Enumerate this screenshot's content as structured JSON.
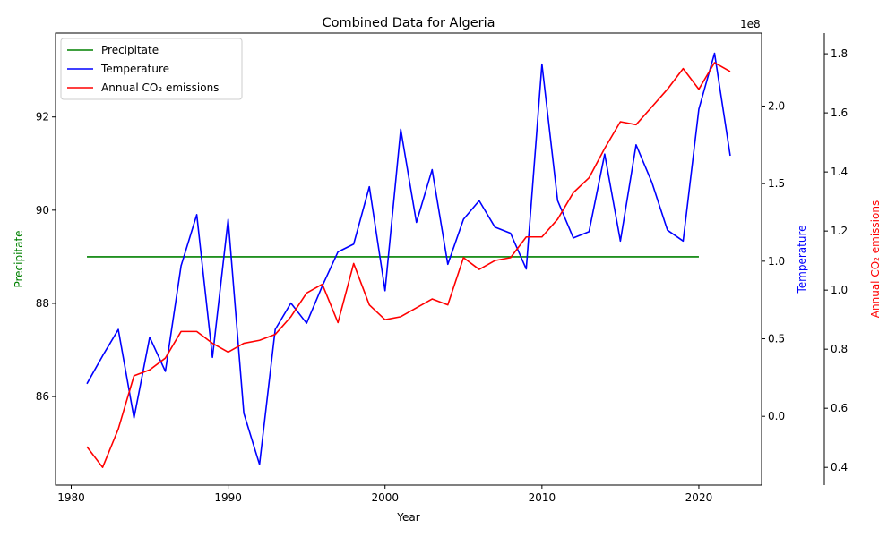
{
  "chart_data": {
    "type": "line",
    "title": "Combined Data for Algeria",
    "xlabel": "Year",
    "xlim": [
      1979,
      2024
    ],
    "x_ticks": [
      1980,
      1990,
      2000,
      2010,
      2020
    ],
    "series": [
      {
        "name": "Precipitate",
        "axis": "left",
        "color": "#008000",
        "x": [
          1981,
          1982,
          1983,
          1984,
          1985,
          1986,
          1987,
          1988,
          1989,
          1990,
          1991,
          1992,
          1993,
          1994,
          1995,
          1996,
          1997,
          1998,
          1999,
          2000,
          2001,
          2002,
          2003,
          2004,
          2005,
          2006,
          2007,
          2008,
          2009,
          2010,
          2011,
          2012,
          2013,
          2014,
          2015,
          2016,
          2017,
          2018,
          2019,
          2020
        ],
        "values": [
          89,
          89,
          89,
          89,
          89,
          89,
          89,
          89,
          89,
          89,
          89,
          89,
          89,
          89,
          89,
          89,
          89,
          89,
          89,
          89,
          89,
          89,
          89,
          89,
          89,
          89,
          89,
          89,
          89,
          89,
          89,
          89,
          89,
          89,
          89,
          89,
          89,
          89,
          89,
          89
        ]
      },
      {
        "name": "Temperature",
        "axis": "right",
        "color": "#0000ff",
        "x": [
          1981,
          1982,
          1983,
          1984,
          1985,
          1986,
          1987,
          1988,
          1989,
          1990,
          1991,
          1992,
          1993,
          1994,
          1995,
          1996,
          1997,
          1998,
          1999,
          2000,
          2001,
          2002,
          2003,
          2004,
          2005,
          2006,
          2007,
          2008,
          2009,
          2010,
          2011,
          2012,
          2013,
          2014,
          2015,
          2016,
          2017,
          2018,
          2019,
          2020,
          2021,
          2022
        ],
        "values": [
          0.21,
          0.39,
          0.56,
          -0.01,
          0.51,
          0.29,
          0.97,
          1.3,
          0.38,
          1.27,
          0.02,
          -0.31,
          0.56,
          0.73,
          0.6,
          0.84,
          1.06,
          1.11,
          1.48,
          0.81,
          1.85,
          1.25,
          1.59,
          0.98,
          1.27,
          1.39,
          1.22,
          1.18,
          0.95,
          2.27,
          1.39,
          1.15,
          1.19,
          1.69,
          1.13,
          1.75,
          1.51,
          1.2,
          1.13,
          1.98,
          2.34,
          1.68
        ]
      },
      {
        "name": "Annual CO₂ emissions",
        "axis": "right2",
        "color": "#ff0000",
        "x": [
          1981,
          1982,
          1983,
          1984,
          1985,
          1986,
          1987,
          1988,
          1989,
          1990,
          1991,
          1992,
          1993,
          1994,
          1995,
          1996,
          1997,
          1998,
          1999,
          2000,
          2001,
          2002,
          2003,
          2004,
          2005,
          2006,
          2007,
          2008,
          2009,
          2010,
          2011,
          2012,
          2013,
          2014,
          2015,
          2016,
          2017,
          2018,
          2019,
          2020,
          2021,
          2022
        ],
        "values": [
          0.47,
          0.4,
          0.53,
          0.71,
          0.73,
          0.77,
          0.86,
          0.86,
          0.82,
          0.79,
          0.82,
          0.83,
          0.85,
          0.91,
          0.99,
          1.02,
          0.89,
          1.09,
          0.95,
          0.9,
          0.91,
          0.94,
          0.97,
          0.95,
          1.11,
          1.07,
          1.1,
          1.11,
          1.18,
          1.18,
          1.24,
          1.33,
          1.38,
          1.48,
          1.57,
          1.56,
          1.62,
          1.68,
          1.75,
          1.68,
          1.77,
          1.74
        ]
      }
    ],
    "left_axis": {
      "label": "Precipitate",
      "color": "#008000",
      "ylim": [
        84.1,
        93.8
      ],
      "ticks": [
        86,
        88,
        90,
        92
      ]
    },
    "right_axis": {
      "label": "Temperature",
      "color": "#0000ff",
      "ylim": [
        -0.443,
        2.47
      ],
      "ticks": [
        0.0,
        0.5,
        1.0,
        1.5,
        2.0
      ],
      "tick_labels": [
        "0.0",
        "0.5",
        "1.0",
        "1.5",
        "2.0"
      ],
      "multiplier": "1e8"
    },
    "right_axis2": {
      "label": "Annual CO₂ emissions",
      "color": "#ff0000",
      "ylim": [
        0.34,
        1.87
      ],
      "ticks": [
        0.4,
        0.6,
        0.8,
        1.0,
        1.2,
        1.4,
        1.6,
        1.8
      ],
      "tick_labels": [
        "0.4",
        "0.6",
        "0.8",
        "1.0",
        "1.2",
        "1.4",
        "1.6",
        "1.8"
      ]
    },
    "legend": {
      "placement": "upper-left",
      "entries": [
        "Precipitate",
        "Temperature",
        "Annual CO₂ emissions"
      ]
    },
    "grid": false
  }
}
